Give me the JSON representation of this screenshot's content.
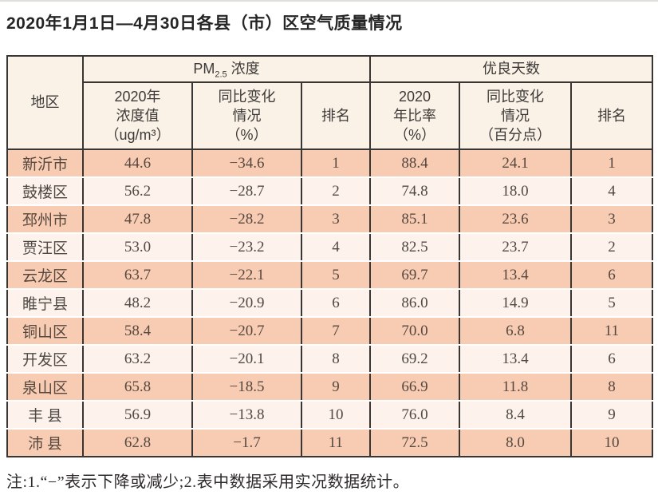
{
  "title": "2020年1月1日—4月30日各县（市）区空气质量情况",
  "table": {
    "header": {
      "region": "地区",
      "pm25_group": {
        "prefix": "PM",
        "sub": "2.5",
        "suffix": " 浓度"
      },
      "good_days_group": "优良天数",
      "pm25_value": "2020年\n浓度值\n（ug/m³）",
      "pm25_change": "同比变化\n情况\n（%）",
      "pm25_rank": "排名",
      "good_rate": "2020\n年比率\n（%）",
      "good_change": "同比变化\n情况\n（百分点）",
      "good_rank": "排名"
    },
    "rows": [
      {
        "region": "新沂市",
        "pm25_value": "44.6",
        "pm25_change": "−34.6",
        "pm25_rank": "1",
        "good_rate": "88.4",
        "good_change": "24.1",
        "good_rank": "1"
      },
      {
        "region": "鼓楼区",
        "pm25_value": "56.2",
        "pm25_change": "−28.7",
        "pm25_rank": "2",
        "good_rate": "74.8",
        "good_change": "18.0",
        "good_rank": "4"
      },
      {
        "region": "邳州市",
        "pm25_value": "47.8",
        "pm25_change": "−28.2",
        "pm25_rank": "3",
        "good_rate": "85.1",
        "good_change": "23.6",
        "good_rank": "3"
      },
      {
        "region": "贾汪区",
        "pm25_value": "53.0",
        "pm25_change": "−23.2",
        "pm25_rank": "4",
        "good_rate": "82.5",
        "good_change": "23.7",
        "good_rank": "2"
      },
      {
        "region": "云龙区",
        "pm25_value": "63.7",
        "pm25_change": "−22.1",
        "pm25_rank": "5",
        "good_rate": "69.7",
        "good_change": "13.4",
        "good_rank": "6"
      },
      {
        "region": "睢宁县",
        "pm25_value": "48.2",
        "pm25_change": "−20.9",
        "pm25_rank": "6",
        "good_rate": "86.0",
        "good_change": "14.9",
        "good_rank": "5"
      },
      {
        "region": "铜山区",
        "pm25_value": "58.4",
        "pm25_change": "−20.7",
        "pm25_rank": "7",
        "good_rate": "70.0",
        "good_change": "6.8",
        "good_rank": "11"
      },
      {
        "region": "开发区",
        "pm25_value": "63.2",
        "pm25_change": "−20.1",
        "pm25_rank": "8",
        "good_rate": "69.2",
        "good_change": "13.4",
        "good_rank": "6"
      },
      {
        "region": "泉山区",
        "pm25_value": "65.8",
        "pm25_change": "−18.5",
        "pm25_rank": "9",
        "good_rate": "66.9",
        "good_change": "11.8",
        "good_rank": "8"
      },
      {
        "region": "丰 县",
        "pm25_value": "56.9",
        "pm25_change": "−13.8",
        "pm25_rank": "10",
        "good_rate": "76.0",
        "good_change": "8.4",
        "good_rank": "9"
      },
      {
        "region": "沛 县",
        "pm25_value": "62.8",
        "pm25_change": "−1.7",
        "pm25_rank": "11",
        "good_rate": "72.5",
        "good_change": "8.0",
        "good_rank": "10"
      }
    ]
  },
  "note": "注:1.“−”表示下降或减少;2.表中数据采用实况数据统计。",
  "colors": {
    "row_salmon": "#f8ccb3",
    "row_light": "#fdf2ec",
    "header_bg": "#fbf2e7",
    "border": "#383635"
  }
}
